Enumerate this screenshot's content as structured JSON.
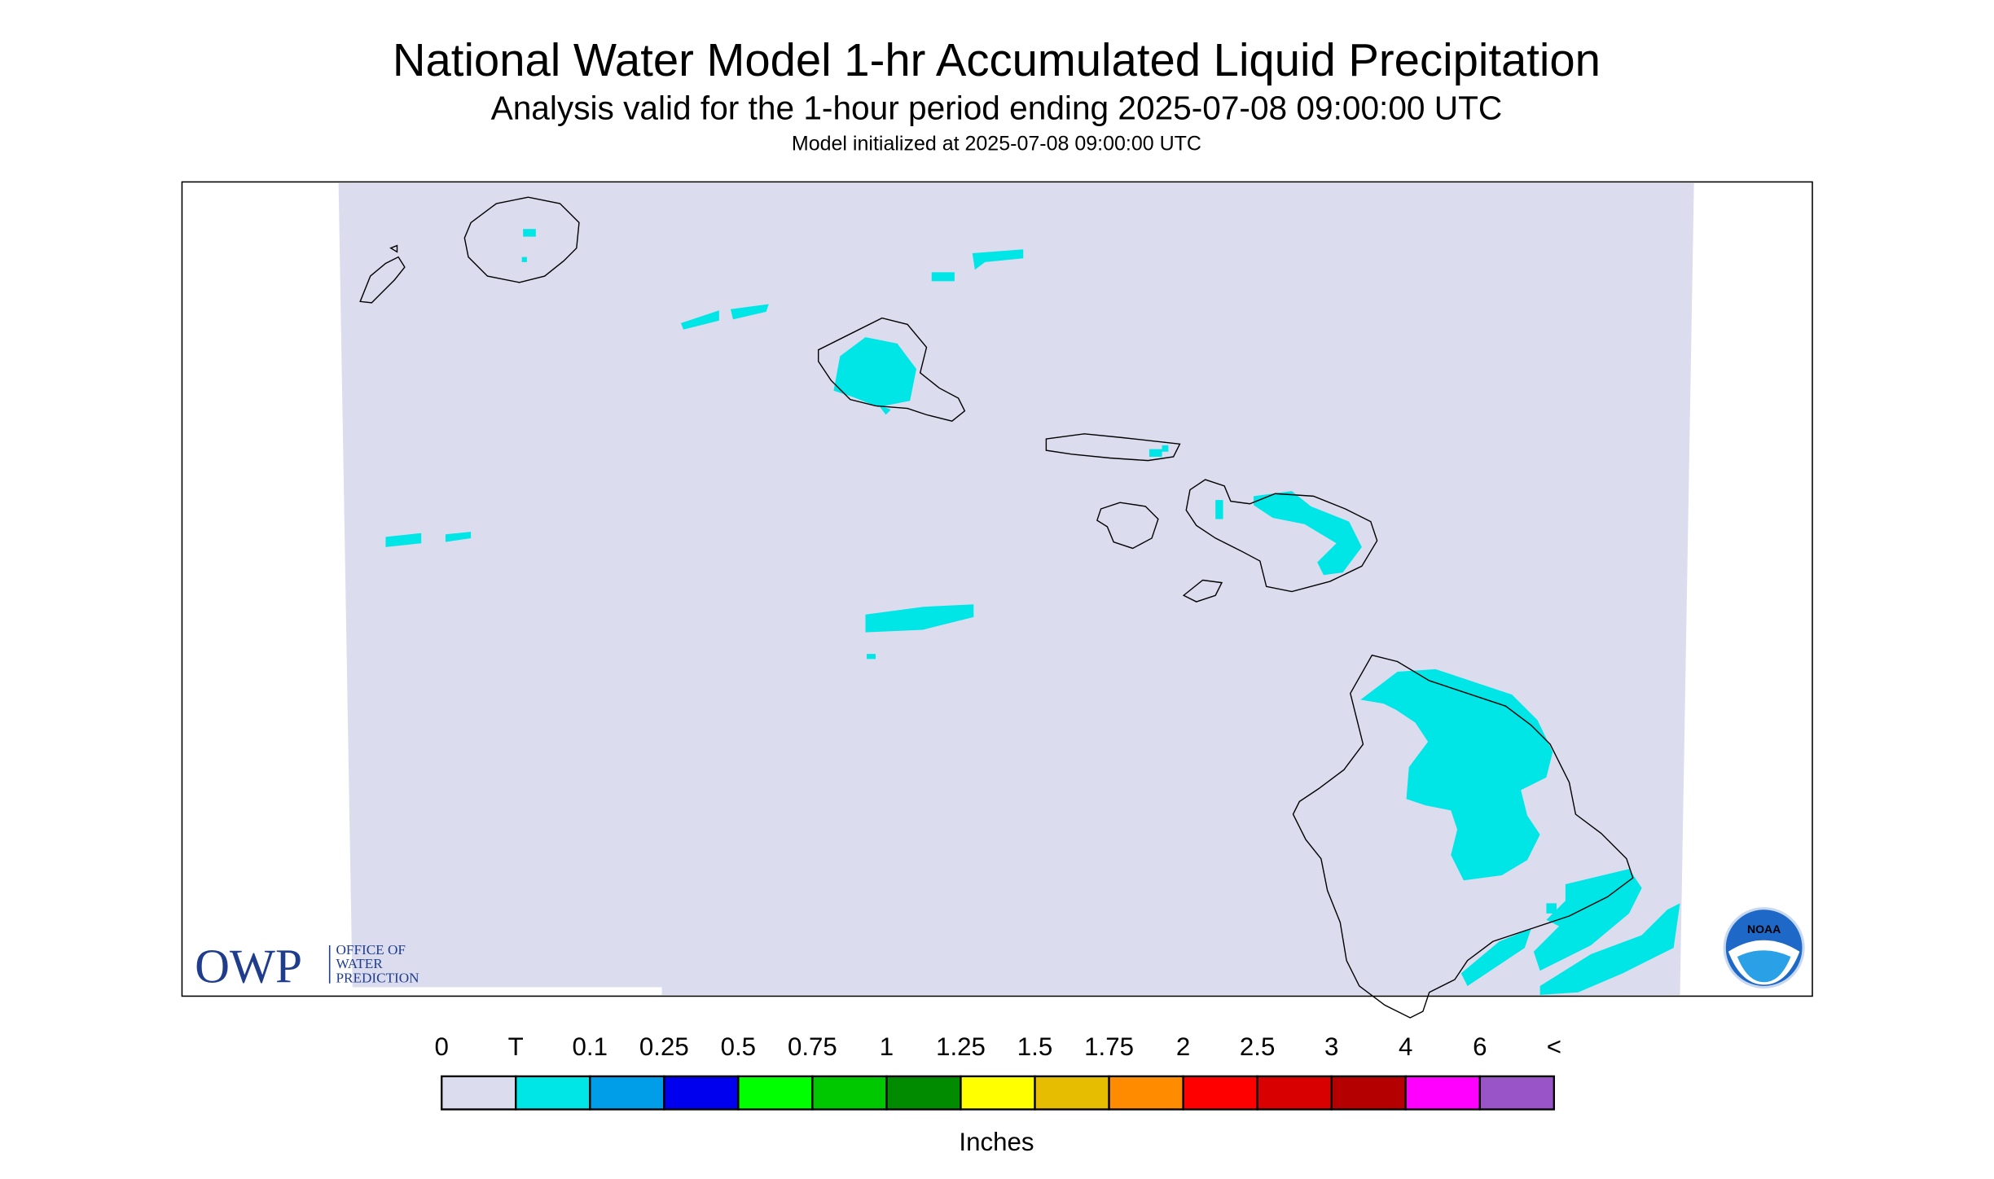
{
  "header": {
    "title": "National Water Model 1-hr Accumulated Liquid Precipitation",
    "subtitle": "Analysis valid for the 1-hour period ending 2025-07-08 09:00:00 UTC",
    "initialized": "Model initialized at 2025-07-08 09:00:00 UTC"
  },
  "logos": {
    "owp": {
      "mark": "OWP",
      "lines": [
        "OFFICE OF",
        "WATER",
        "PREDICTION"
      ]
    },
    "noaa": "NOAA"
  },
  "legend": {
    "labels": [
      "0",
      "T",
      "0.1",
      "0.25",
      "0.5",
      "0.75",
      "1",
      "1.25",
      "1.5",
      "1.75",
      "2",
      "2.5",
      "3",
      "4",
      "6",
      "<"
    ],
    "colors": [
      "#dcdcef",
      "#00e5e5",
      "#009ee8",
      "#0000ee",
      "#00ff00",
      "#00c800",
      "#008b00",
      "#ffff00",
      "#e6bd00",
      "#ff8c00",
      "#ff0000",
      "#d80000",
      "#b40000",
      "#ff00ff",
      "#9955c8"
    ],
    "unit": "Inches"
  }
}
